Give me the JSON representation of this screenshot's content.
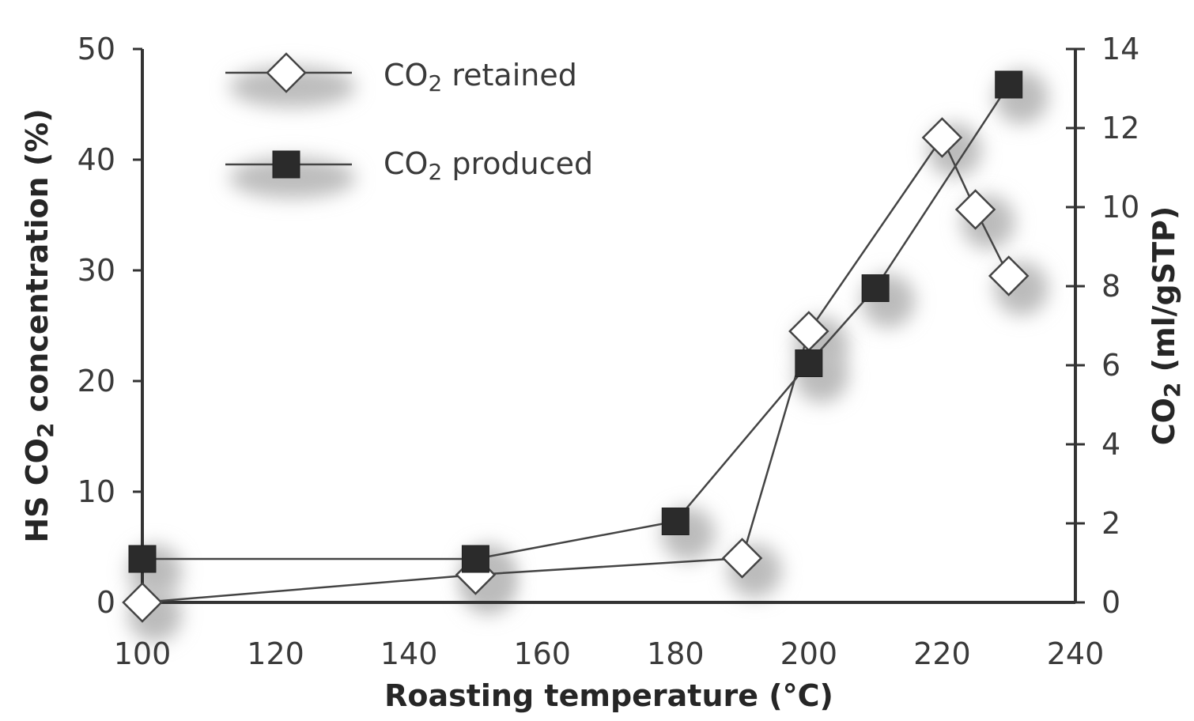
{
  "chart_data": {
    "type": "line",
    "xlabel": "Roasting temperature (°C)",
    "xlim": [
      100,
      240
    ],
    "x_ticks": [
      "100",
      "120",
      "140",
      "160",
      "180",
      "200",
      "220",
      "240"
    ],
    "ylabel_left": {
      "prefix": "HS CO",
      "sub": "2",
      "suffix": " concentration (%)"
    },
    "ylim_left": [
      0,
      50
    ],
    "y_ticks_left": [
      "0",
      "10",
      "20",
      "30",
      "40",
      "50"
    ],
    "ylabel_right": {
      "prefix": "CO",
      "sub": "2",
      "suffix": " (ml/gSTP)"
    },
    "ylim_right": [
      0,
      14
    ],
    "y_ticks_right": [
      "0",
      "2",
      "4",
      "6",
      "8",
      "10",
      "12",
      "14"
    ],
    "legend_position": "top-left",
    "series": [
      {
        "legend": {
          "prefix": "CO",
          "sub": "2",
          "suffix": " retained"
        },
        "marker": "diamond-open",
        "axis": "left",
        "x": [
          100,
          150,
          190,
          200,
          220,
          225,
          230
        ],
        "y": [
          0,
          2.5,
          4,
          24.5,
          42,
          35.5,
          29.5
        ]
      },
      {
        "legend": {
          "prefix": "CO",
          "sub": "2",
          "suffix": " produced"
        },
        "marker": "square-filled",
        "axis": "right",
        "x": [
          100,
          150,
          180,
          200,
          210,
          230
        ],
        "y": [
          1.1,
          1.1,
          2.05,
          6.05,
          7.95,
          13.1
        ]
      }
    ]
  }
}
